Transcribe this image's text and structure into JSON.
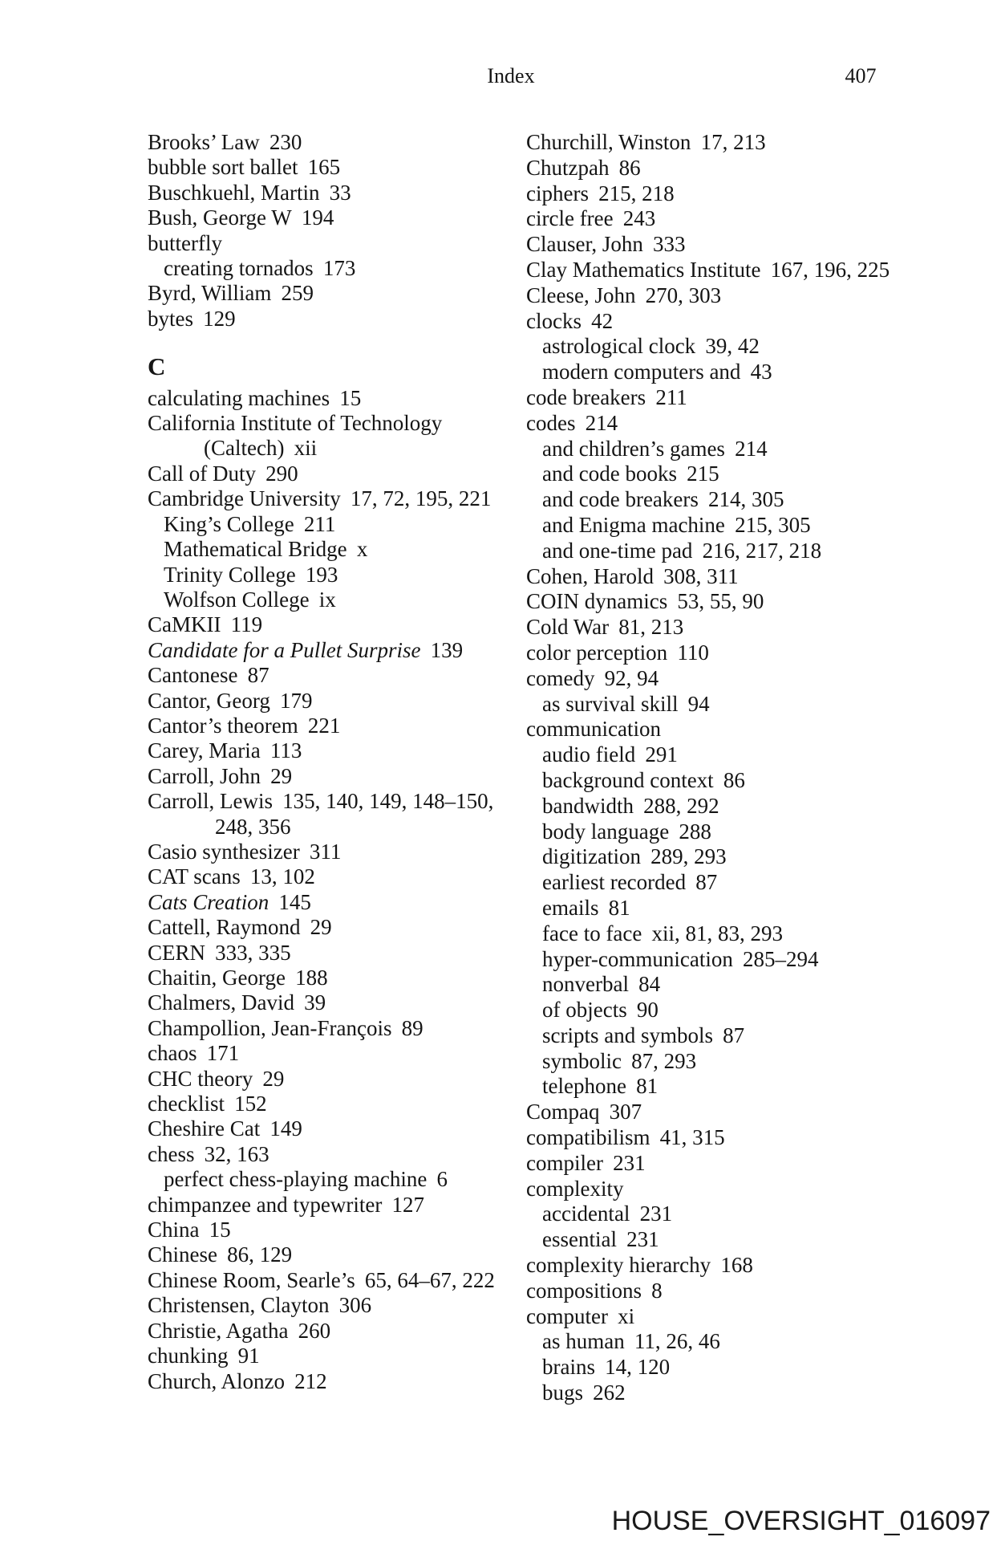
{
  "page": {
    "header": {
      "title": "Index",
      "page_number": "407"
    },
    "watermark": "HOUSE_OVERSIGHT_016097",
    "colors": {
      "text": "#151515",
      "background": "#ffffff"
    }
  },
  "index": {
    "columns": [
      {
        "side": "left",
        "entries": [
          {
            "text": "Brooks’ Law",
            "refs": "230",
            "indent": 0
          },
          {
            "text": "bubble sort ballet",
            "refs": "165",
            "indent": 0
          },
          {
            "text": "Buschkuehl, Martin",
            "refs": "33",
            "indent": 0
          },
          {
            "text": "Bush, George W",
            "refs": "194",
            "indent": 0
          },
          {
            "text": "butterfly",
            "refs": "",
            "indent": 0
          },
          {
            "text": "creating tornados",
            "refs": "173",
            "indent": 1
          },
          {
            "text": "Byrd, William",
            "refs": "259",
            "indent": 0
          },
          {
            "text": "bytes",
            "refs": "129",
            "indent": 0
          },
          {
            "text": "C",
            "refs": "",
            "indent": 0,
            "heading": true
          },
          {
            "text": "calculating machines",
            "refs": "15",
            "indent": 0
          },
          {
            "text": "California Institute of Technology",
            "refs": "",
            "indent": 0
          },
          {
            "text": "(Caltech)",
            "refs": "xii",
            "indent": 2
          },
          {
            "text": "Call of Duty",
            "refs": "290",
            "indent": 0
          },
          {
            "text": "Cambridge University",
            "refs": "17, 72, 195, 221",
            "indent": 0
          },
          {
            "text": "King’s College",
            "refs": "211",
            "indent": 1
          },
          {
            "text": "Mathematical Bridge",
            "refs": "x",
            "indent": 1
          },
          {
            "text": "Trinity College",
            "refs": "193",
            "indent": 1
          },
          {
            "text": "Wolfson College",
            "refs": "ix",
            "indent": 1
          },
          {
            "text": "CaMKII",
            "refs": "119",
            "indent": 0
          },
          {
            "text": "Candidate for a Pullet Surprise",
            "refs": "139",
            "indent": 0,
            "italic": true
          },
          {
            "text": "Cantonese",
            "refs": "87",
            "indent": 0
          },
          {
            "text": "Cantor, Georg",
            "refs": "179",
            "indent": 0
          },
          {
            "text": "Cantor’s theorem",
            "refs": "221",
            "indent": 0
          },
          {
            "text": "Carey, Maria",
            "refs": "113",
            "indent": 0
          },
          {
            "text": "Carroll, John",
            "refs": "29",
            "indent": 0
          },
          {
            "text": "Carroll, Lewis",
            "refs": "135, 140, 149, 148–150,",
            "indent": 0
          },
          {
            "text": "248, 356",
            "refs": "",
            "indent": 3
          },
          {
            "text": "Casio synthesizer",
            "refs": "311",
            "indent": 0
          },
          {
            "text": "CAT scans",
            "refs": "13, 102",
            "indent": 0
          },
          {
            "text": "Cats Creation",
            "refs": "145",
            "indent": 0,
            "italic": true
          },
          {
            "text": "Cattell, Raymond",
            "refs": "29",
            "indent": 0
          },
          {
            "text": "CERN",
            "refs": "333, 335",
            "indent": 0
          },
          {
            "text": "Chaitin, George",
            "refs": "188",
            "indent": 0
          },
          {
            "text": "Chalmers, David",
            "refs": "39",
            "indent": 0
          },
          {
            "text": "Champollion, Jean-François",
            "refs": "89",
            "indent": 0
          },
          {
            "text": "chaos",
            "refs": "171",
            "indent": 0
          },
          {
            "text": "CHC theory",
            "refs": "29",
            "indent": 0
          },
          {
            "text": "checklist",
            "refs": "152",
            "indent": 0
          },
          {
            "text": "Cheshire Cat",
            "refs": "149",
            "indent": 0
          },
          {
            "text": "chess",
            "refs": "32, 163",
            "indent": 0
          },
          {
            "text": "perfect chess-playing machine",
            "refs": "6",
            "indent": 1
          },
          {
            "text": "chimpanzee and typewriter",
            "refs": "127",
            "indent": 0
          },
          {
            "text": "China",
            "refs": "15",
            "indent": 0
          },
          {
            "text": "Chinese",
            "refs": "86, 129",
            "indent": 0
          },
          {
            "text": "Chinese Room, Searle’s",
            "refs": "65, 64–67, 222",
            "indent": 0
          },
          {
            "text": "Christensen, Clayton",
            "refs": "306",
            "indent": 0
          },
          {
            "text": "Christie, Agatha",
            "refs": "260",
            "indent": 0
          },
          {
            "text": "chunking",
            "refs": "91",
            "indent": 0
          },
          {
            "text": "Church, Alonzo",
            "refs": "212",
            "indent": 0
          }
        ]
      },
      {
        "side": "right",
        "entries": [
          {
            "text": "Churchill, Winston",
            "refs": "17, 213",
            "indent": 0
          },
          {
            "text": "Chutzpah",
            "refs": "86",
            "indent": 0
          },
          {
            "text": "ciphers",
            "refs": "215, 218",
            "indent": 0
          },
          {
            "text": "circle free",
            "refs": "243",
            "indent": 0
          },
          {
            "text": "Clauser, John",
            "refs": "333",
            "indent": 0
          },
          {
            "text": "Clay Mathematics Institute",
            "refs": "167, 196, 225",
            "indent": 0
          },
          {
            "text": "Cleese, John",
            "refs": "270, 303",
            "indent": 0
          },
          {
            "text": "clocks",
            "refs": "42",
            "indent": 0
          },
          {
            "text": "astrological clock",
            "refs": "39, 42",
            "indent": 1
          },
          {
            "text": "modern computers and",
            "refs": "43",
            "indent": 1
          },
          {
            "text": "code breakers",
            "refs": "211",
            "indent": 0
          },
          {
            "text": "codes",
            "refs": "214",
            "indent": 0
          },
          {
            "text": "and children’s games",
            "refs": "214",
            "indent": 1
          },
          {
            "text": "and code books",
            "refs": "215",
            "indent": 1
          },
          {
            "text": "and code breakers",
            "refs": "214, 305",
            "indent": 1
          },
          {
            "text": "and Enigma machine",
            "refs": "215, 305",
            "indent": 1
          },
          {
            "text": "and one-time pad",
            "refs": "216, 217, 218",
            "indent": 1
          },
          {
            "text": "Cohen, Harold",
            "refs": "308, 311",
            "indent": 0
          },
          {
            "text": "COIN dynamics",
            "refs": "53, 55, 90",
            "indent": 0
          },
          {
            "text": "Cold War",
            "refs": "81, 213",
            "indent": 0
          },
          {
            "text": "color perception",
            "refs": "110",
            "indent": 0
          },
          {
            "text": "comedy",
            "refs": "92, 94",
            "indent": 0
          },
          {
            "text": "as survival skill",
            "refs": "94",
            "indent": 1
          },
          {
            "text": "communication",
            "refs": "",
            "indent": 0
          },
          {
            "text": "audio field",
            "refs": "291",
            "indent": 1
          },
          {
            "text": "background context",
            "refs": "86",
            "indent": 1
          },
          {
            "text": "bandwidth",
            "refs": "288, 292",
            "indent": 1
          },
          {
            "text": "body language",
            "refs": "288",
            "indent": 1
          },
          {
            "text": "digitization",
            "refs": "289, 293",
            "indent": 1
          },
          {
            "text": "earliest recorded",
            "refs": "87",
            "indent": 1
          },
          {
            "text": "emails",
            "refs": "81",
            "indent": 1
          },
          {
            "text": "face to face",
            "refs": "xii, 81, 83, 293",
            "indent": 1
          },
          {
            "text": "hyper-communication",
            "refs": "285–294",
            "indent": 1
          },
          {
            "text": "nonverbal",
            "refs": "84",
            "indent": 1
          },
          {
            "text": "of objects",
            "refs": "90",
            "indent": 1
          },
          {
            "text": "scripts and symbols",
            "refs": "87",
            "indent": 1
          },
          {
            "text": "symbolic",
            "refs": "87, 293",
            "indent": 1
          },
          {
            "text": "telephone",
            "refs": "81",
            "indent": 1
          },
          {
            "text": "Compaq",
            "refs": "307",
            "indent": 0
          },
          {
            "text": "compatibilism",
            "refs": "41, 315",
            "indent": 0
          },
          {
            "text": "compiler",
            "refs": "231",
            "indent": 0
          },
          {
            "text": "complexity",
            "refs": "",
            "indent": 0
          },
          {
            "text": "accidental",
            "refs": "231",
            "indent": 1
          },
          {
            "text": "essential",
            "refs": "231",
            "indent": 1
          },
          {
            "text": "complexity hierarchy",
            "refs": "168",
            "indent": 0
          },
          {
            "text": "compositions",
            "refs": "8",
            "indent": 0
          },
          {
            "text": "computer",
            "refs": "xi",
            "indent": 0
          },
          {
            "text": "as human",
            "refs": "11, 26, 46",
            "indent": 1
          },
          {
            "text": "brains",
            "refs": "14, 120",
            "indent": 1
          },
          {
            "text": "bugs",
            "refs": "262",
            "indent": 1
          }
        ]
      }
    ]
  }
}
